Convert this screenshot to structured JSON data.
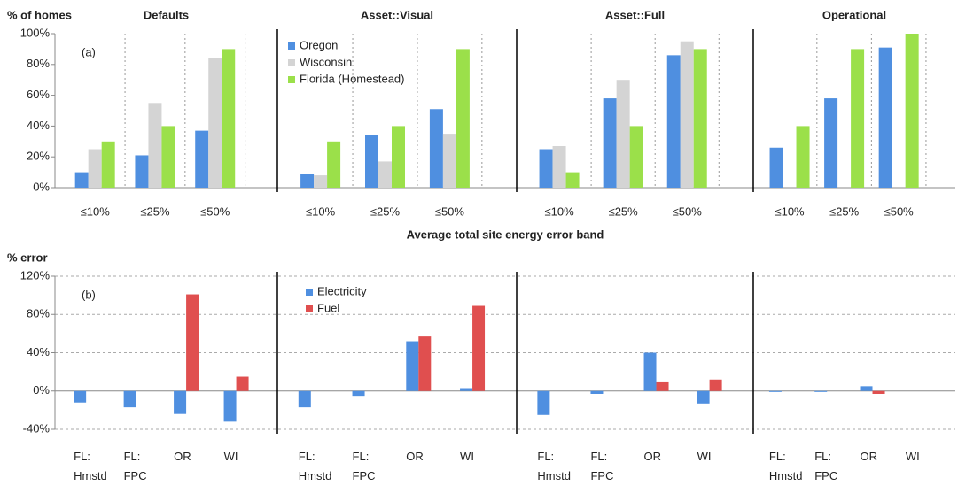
{
  "chart_data": [
    {
      "type": "bar",
      "y_label": "% of homes",
      "panel_label": "(a)",
      "x_label": "Average total site energy error band",
      "categories": [
        "≤10%",
        "≤25%",
        "≤50%"
      ],
      "series": [
        {
          "name": "Oregon",
          "color": "#4f8fe0"
        },
        {
          "name": "Wisconsin",
          "color": "#d4d4d4"
        },
        {
          "name": "Florida (Homestead)",
          "color": "#9be04a"
        }
      ],
      "ylim": [
        0,
        100
      ],
      "yticks": [
        {
          "value": 0,
          "label": "0%"
        },
        {
          "value": 20,
          "label": "20%"
        },
        {
          "value": 40,
          "label": "40%"
        },
        {
          "value": 60,
          "label": "60%"
        },
        {
          "value": 80,
          "label": "80%"
        },
        {
          "value": 100,
          "label": "100%"
        }
      ],
      "panels": [
        {
          "title": "Defaults",
          "values": [
            [
              10,
              21,
              37
            ],
            [
              25,
              55,
              84
            ],
            [
              30,
              40,
              90
            ]
          ]
        },
        {
          "title": "Asset::Visual",
          "values": [
            [
              9,
              34,
              51
            ],
            [
              8,
              17,
              35
            ],
            [
              30,
              40,
              90
            ]
          ]
        },
        {
          "title": "Asset::Full",
          "values": [
            [
              25,
              58,
              86
            ],
            [
              27,
              70,
              95
            ],
            [
              10,
              40,
              90
            ]
          ]
        },
        {
          "title": "Operational",
          "values": [
            [
              26,
              58,
              91
            ],
            [
              null,
              null,
              null
            ],
            [
              40,
              90,
              100
            ]
          ]
        }
      ]
    },
    {
      "type": "bar",
      "y_label": "% error",
      "panel_label": "(b)",
      "categories": [
        "FL: Hmstd",
        "FL: FPC",
        "OR",
        "WI"
      ],
      "series": [
        {
          "name": "Electricity",
          "color": "#4f8fe0"
        },
        {
          "name": "Fuel",
          "color": "#e04f4f"
        }
      ],
      "ylim": [
        -40,
        120
      ],
      "grid": true,
      "yticks": [
        {
          "value": -40,
          "label": "-40%"
        },
        {
          "value": 0,
          "label": "0%"
        },
        {
          "value": 40,
          "label": "40%"
        },
        {
          "value": 80,
          "label": "80%"
        },
        {
          "value": 120,
          "label": "120%"
        }
      ],
      "panels": [
        {
          "values": [
            [
              -12,
              -17,
              -24,
              -32
            ],
            [
              null,
              null,
              101,
              15
            ]
          ]
        },
        {
          "values": [
            [
              -17,
              -5,
              52,
              3
            ],
            [
              null,
              null,
              57,
              89
            ]
          ]
        },
        {
          "values": [
            [
              -25,
              -3,
              40,
              -13
            ],
            [
              null,
              null,
              10,
              12
            ]
          ]
        },
        {
          "values": [
            [
              -1,
              -1,
              5,
              null
            ],
            [
              null,
              null,
              -3,
              null
            ]
          ]
        }
      ]
    }
  ]
}
